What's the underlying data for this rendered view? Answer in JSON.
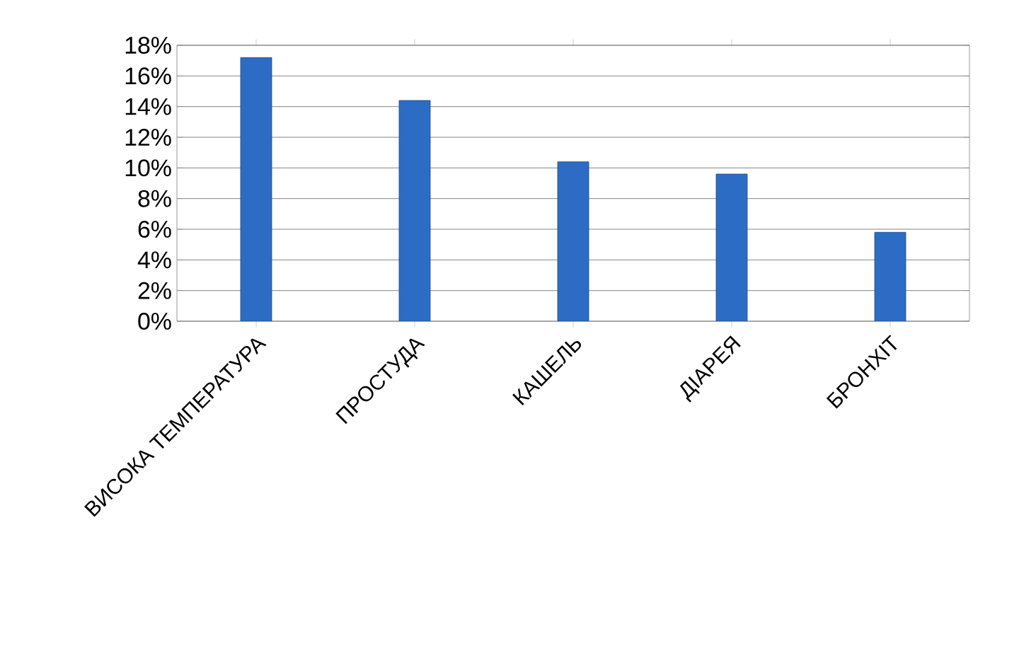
{
  "chart_data": {
    "type": "bar",
    "categories": [
      "ВИСОКА ТЕМПЕРАТУРА",
      "ПРОСТУДА",
      "КАШЕЛЬ",
      "ДІАРЕЯ",
      "БРОНХІТ"
    ],
    "values": [
      17.2,
      14.4,
      10.4,
      9.6,
      5.8
    ],
    "color": "#2c6cc4",
    "ylim": [
      0,
      18
    ],
    "yticks": [
      {
        "value": 0,
        "label": "0%"
      },
      {
        "value": 2,
        "label": "2%"
      },
      {
        "value": 4,
        "label": "4%"
      },
      {
        "value": 6,
        "label": "6%"
      },
      {
        "value": 8,
        "label": "8%"
      },
      {
        "value": 10,
        "label": "10%"
      },
      {
        "value": 12,
        "label": "12%"
      },
      {
        "value": 14,
        "label": "14%"
      },
      {
        "value": 16,
        "label": "16%"
      },
      {
        "value": 18,
        "label": "18%"
      }
    ],
    "grid": "y"
  }
}
